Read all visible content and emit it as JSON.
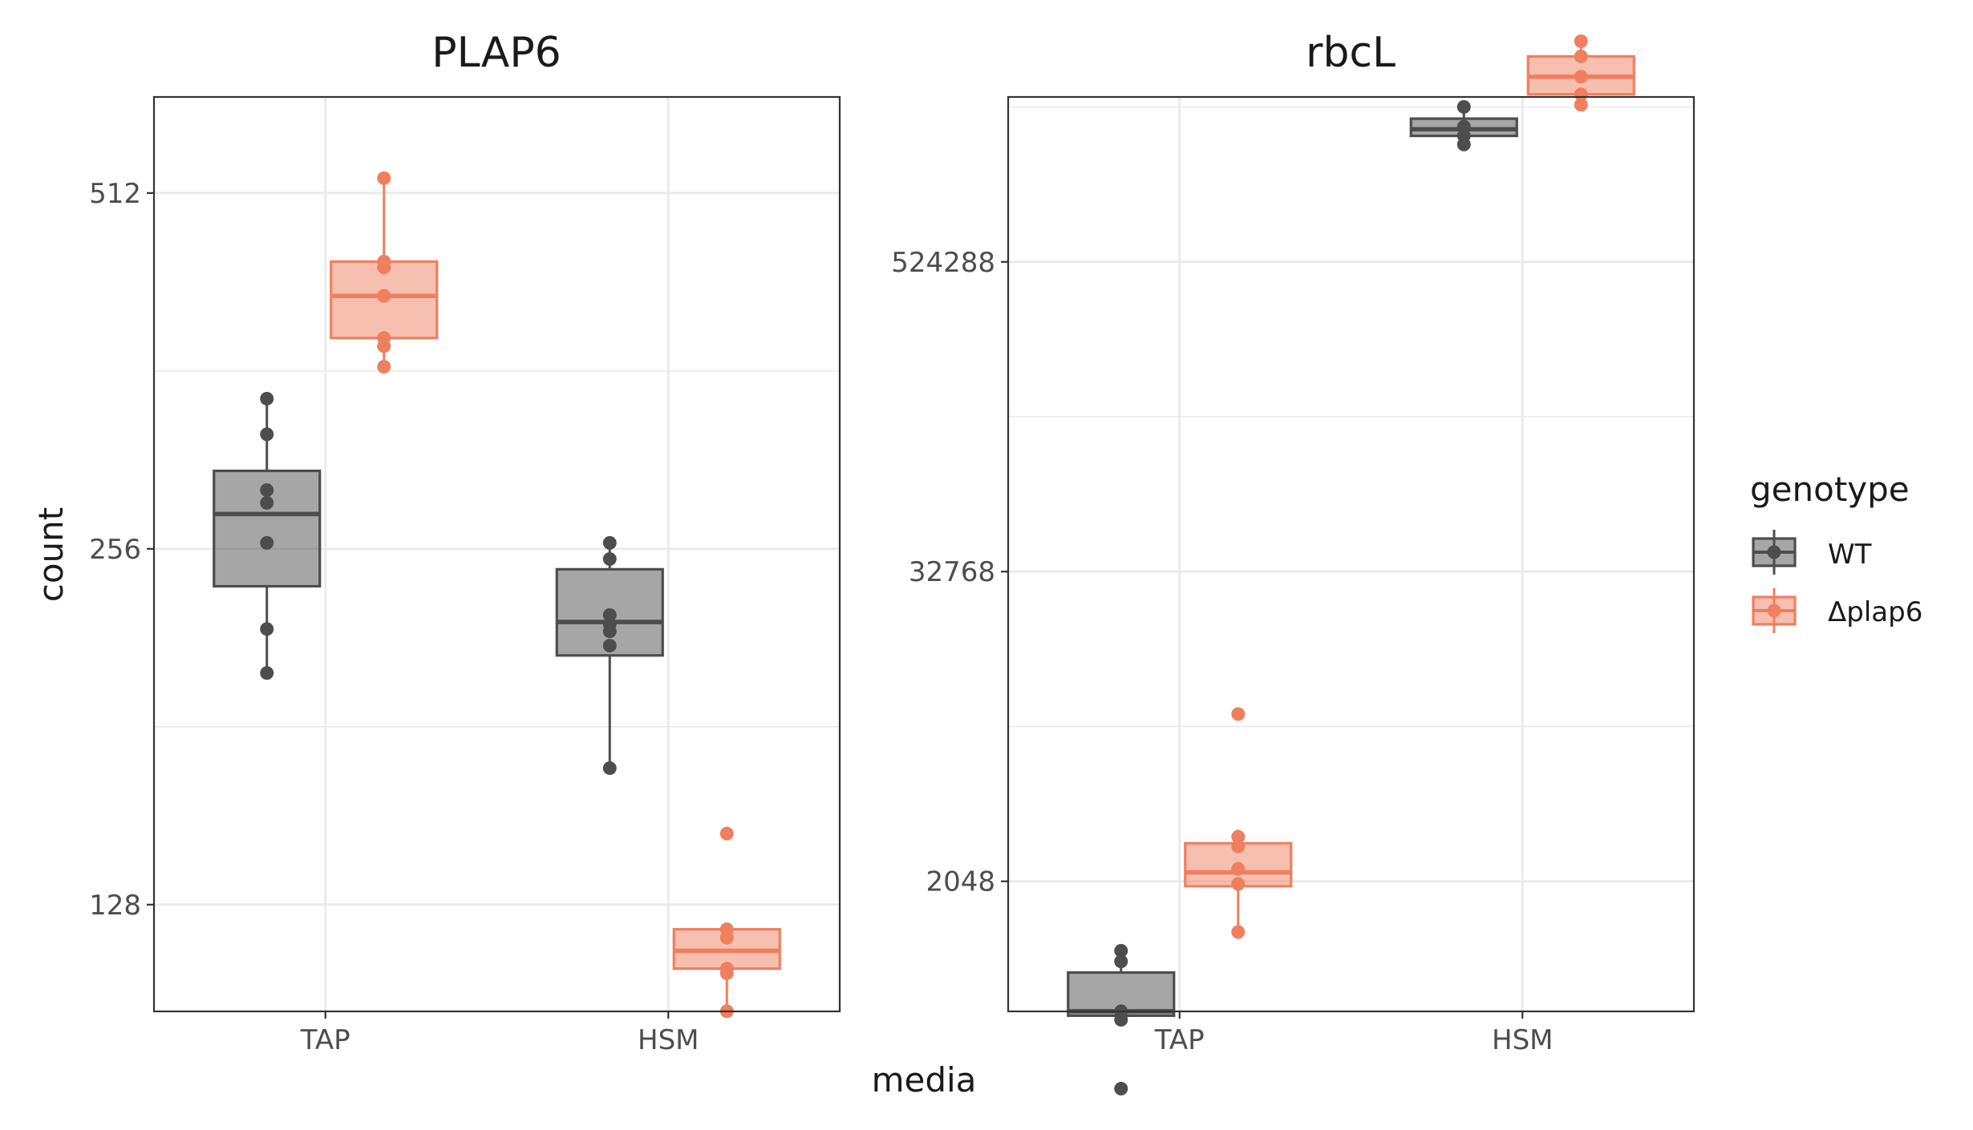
{
  "chart_data": {
    "type": "box",
    "xlabel": "media",
    "ylabel": "count",
    "categories": [
      "TAP",
      "HSM"
    ],
    "colors": {
      "WT": "#4d4d4d",
      "Δplap6": "#f07f5f"
    },
    "legend": {
      "title": "genotype",
      "position": "right",
      "entries": [
        {
          "name": "WT",
          "color": "#4d4d4d"
        },
        {
          "name": "Δplap6",
          "color": "#f07f5f"
        }
      ]
    },
    "panels": [
      {
        "title": "PLAP6",
        "yscale": "log2",
        "ylim_log2": [
          6.7,
          9.27
        ],
        "yticks": [
          128,
          256,
          512
        ],
        "yticklabels": [
          "128",
          "256",
          "512"
        ],
        "series": [
          {
            "genotype": "WT",
            "groups": [
              {
                "category": "TAP",
                "box": {
                  "whisker_low": 201,
                  "q1": 238,
                  "median": 274,
                  "q3": 298,
                  "whisker_high": 343
                },
                "points": [
                  201,
                  219,
                  259,
                  280,
                  287,
                  320,
                  343
                ]
              },
              {
                "category": "HSM",
                "box": {
                  "whisker_low": 167,
                  "q1": 208,
                  "median": 222,
                  "q3": 246,
                  "whisker_high": 259
                },
                "points": [
                  167,
                  212,
                  218,
                  221,
                  225,
                  251,
                  259
                ]
              }
            ]
          },
          {
            "genotype": "Δplap6",
            "groups": [
              {
                "category": "TAP",
                "box": {
                  "whisker_low": 365,
                  "q1": 386,
                  "median": 419,
                  "q3": 448,
                  "whisker_high": 527
                },
                "points": [
                  365,
                  380,
                  386,
                  419,
                  443,
                  448,
                  527
                ]
              },
              {
                "category": "HSM",
                "box": {
                  "whisker_low": 104,
                  "q1": 113,
                  "median": 117,
                  "q3": 122,
                  "whisker_high": 122
                },
                "points": [
                  104,
                  112,
                  113,
                  120,
                  122,
                  147
                ]
              }
            ]
          }
        ]
      },
      {
        "title": "rbcL",
        "yscale": "log2",
        "ylim_log2": [
          9.32,
          21.13
        ],
        "yticks": [
          2048,
          32768,
          524288
        ],
        "yticklabels": [
          "2048",
          "32768",
          "524288"
        ],
        "series": [
          {
            "genotype": "WT",
            "groups": [
              {
                "category": "TAP",
                "box": {
                  "whisker_low": 593,
                  "q1": 615,
                  "median": 640,
                  "q3": 905,
                  "whisker_high": 1100
                },
                "points": [
                  320,
                  593,
                  640,
                  1000,
                  1100
                ]
              },
              {
                "category": "HSM",
                "box": {
                  "whisker_low": 1500000,
                  "q1": 1620000,
                  "median": 1720000,
                  "q3": 1890000,
                  "whisker_high": 2100000
                },
                "points": [
                  1500000,
                  1620000,
                  1760000,
                  2100000
                ]
              }
            ]
          },
          {
            "genotype": "Δplap6",
            "groups": [
              {
                "category": "TAP",
                "box": {
                  "whisker_low": 1300,
                  "q1": 1960,
                  "median": 2220,
                  "q3": 2880,
                  "whisker_high": 3250
                },
                "points": [
                  1300,
                  2000,
                  2290,
                  2800,
                  3050,
                  9150
                ]
              },
              {
                "category": "HSM",
                "box": {
                  "whisker_low": 2140000,
                  "q1": 2350000,
                  "median": 2750000,
                  "q3": 3300000,
                  "whisker_high": 3780000
                },
                "points": [
                  2140000,
                  2350000,
                  2750000,
                  3300000,
                  3780000
                ]
              }
            ]
          }
        ]
      }
    ]
  }
}
